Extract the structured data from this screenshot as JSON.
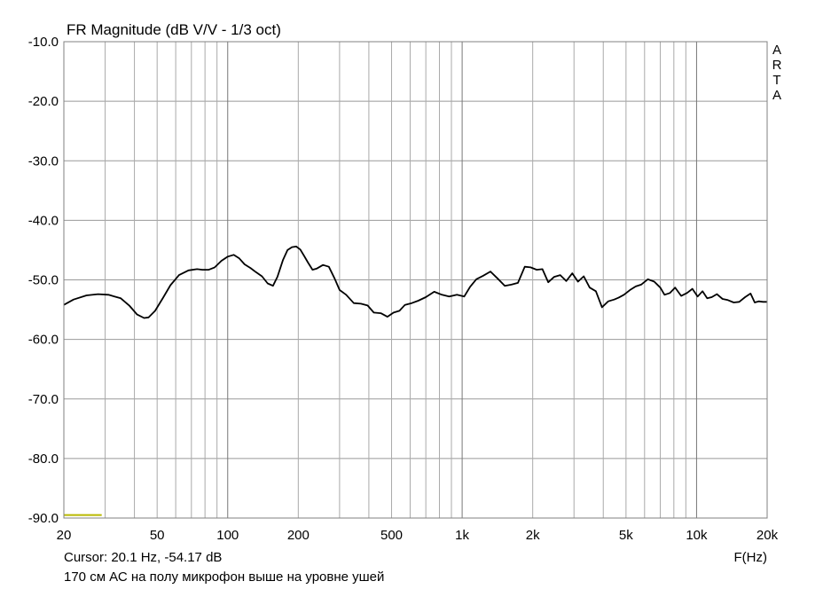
{
  "chart_data": {
    "type": "line",
    "title": "FR Magnitude (dB V/V - 1/3 oct)",
    "xlabel": "F(Hz)",
    "ylabel": "",
    "x_scale": "log",
    "xlim": [
      20,
      20000
    ],
    "ylim": [
      -90,
      -10
    ],
    "grid": true,
    "watermark": "ARTA",
    "x_ticks": [
      {
        "value": 20,
        "label": "20"
      },
      {
        "value": 50,
        "label": "50"
      },
      {
        "value": 100,
        "label": "100"
      },
      {
        "value": 200,
        "label": "200"
      },
      {
        "value": 500,
        "label": "500"
      },
      {
        "value": 1000,
        "label": "1k"
      },
      {
        "value": 2000,
        "label": "2k"
      },
      {
        "value": 5000,
        "label": "5k"
      },
      {
        "value": 10000,
        "label": "10k"
      },
      {
        "value": 20000,
        "label": "20k"
      }
    ],
    "y_ticks": [
      {
        "value": -10,
        "label": "-10.0"
      },
      {
        "value": -20,
        "label": "-20.0"
      },
      {
        "value": -30,
        "label": "-30.0"
      },
      {
        "value": -40,
        "label": "-40.0"
      },
      {
        "value": -50,
        "label": "-50.0"
      },
      {
        "value": -60,
        "label": "-60.0"
      },
      {
        "value": -70,
        "label": "-70.0"
      },
      {
        "value": -80,
        "label": "-80.0"
      },
      {
        "value": -90,
        "label": "-90.0"
      }
    ],
    "series": [
      {
        "color": "#000000",
        "x": [
          20,
          22,
          25,
          28,
          31,
          35,
          38,
          41,
          44,
          46,
          49,
          53,
          57,
          62,
          68,
          74,
          78,
          83,
          88,
          94,
          100,
          106,
          112,
          118,
          125,
          132,
          140,
          148,
          156,
          163,
          172,
          180,
          188,
          196,
          204,
          212,
          220,
          230,
          240,
          255,
          270,
          286,
          300,
          320,
          345,
          370,
          395,
          420,
          450,
          480,
          510,
          540,
          570,
          610,
          650,
          700,
          760,
          820,
          880,
          950,
          1020,
          1080,
          1150,
          1230,
          1320,
          1420,
          1520,
          1620,
          1730,
          1850,
          1960,
          2080,
          2200,
          2330,
          2470,
          2620,
          2780,
          2950,
          3120,
          3300,
          3500,
          3720,
          3950,
          4200,
          4450,
          4650,
          4900,
          5200,
          5500,
          5800,
          6200,
          6600,
          7000,
          7300,
          7700,
          8100,
          8600,
          9100,
          9600,
          10100,
          10600,
          11100,
          11600,
          12200,
          12900,
          13600,
          14400,
          15200,
          16100,
          17000,
          17700,
          18400,
          19200,
          20000
        ],
        "y": [
          -54.2,
          -53.3,
          -52.6,
          -52.4,
          -52.5,
          -53.1,
          -54.3,
          -55.8,
          -56.4,
          -56.3,
          -55.2,
          -53.0,
          -50.9,
          -49.2,
          -48.4,
          -48.2,
          -48.3,
          -48.3,
          -47.9,
          -46.8,
          -46.1,
          -45.8,
          -46.4,
          -47.4,
          -48.0,
          -48.7,
          -49.4,
          -50.6,
          -51.0,
          -49.5,
          -46.7,
          -45.0,
          -44.5,
          -44.4,
          -44.9,
          -46.0,
          -47.1,
          -48.3,
          -48.1,
          -47.5,
          -47.8,
          -49.8,
          -51.7,
          -52.5,
          -53.9,
          -54.0,
          -54.3,
          -55.5,
          -55.6,
          -56.2,
          -55.5,
          -55.2,
          -54.2,
          -53.9,
          -53.5,
          -52.9,
          -52.0,
          -52.5,
          -52.8,
          -52.5,
          -52.8,
          -51.2,
          -49.9,
          -49.3,
          -48.6,
          -49.8,
          -51.0,
          -50.8,
          -50.5,
          -47.8,
          -47.9,
          -48.3,
          -48.2,
          -50.4,
          -49.5,
          -49.2,
          -50.2,
          -48.9,
          -50.3,
          -49.4,
          -51.3,
          -51.9,
          -54.6,
          -53.6,
          -53.3,
          -53.0,
          -52.5,
          -51.7,
          -51.1,
          -50.8,
          -49.9,
          -50.3,
          -51.3,
          -52.5,
          -52.2,
          -51.3,
          -52.7,
          -52.2,
          -51.5,
          -52.8,
          -51.9,
          -53.1,
          -52.9,
          -52.4,
          -53.2,
          -53.4,
          -53.8,
          -53.7,
          -52.9,
          -52.3,
          -53.8,
          -53.6,
          -53.7,
          -53.7
        ]
      },
      {
        "color": "#b8b800",
        "x": [
          20,
          22,
          24,
          26,
          28,
          29
        ],
        "y": [
          -89.5,
          -89.5,
          -89.5,
          -89.5,
          -89.5,
          -89.5
        ]
      }
    ]
  },
  "footer": {
    "cursor": "Cursor: 20.1 Hz, -54.17 dB",
    "comment": "170 см АС на полу микрофон выше на уровне ушей"
  }
}
